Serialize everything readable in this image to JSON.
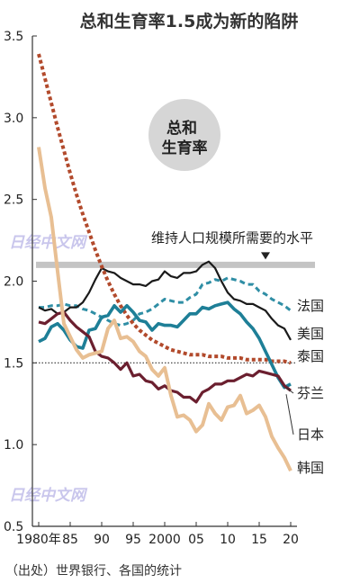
{
  "chart_data": {
    "type": "line",
    "title": "总和生育率1.5成为新的陷阱",
    "badge": "总和\n生育率",
    "x": [
      1980,
      1981,
      1982,
      1983,
      1984,
      1985,
      1986,
      1987,
      1988,
      1989,
      1990,
      1991,
      1992,
      1993,
      1994,
      1995,
      1996,
      1997,
      1998,
      1999,
      2000,
      2001,
      2002,
      2003,
      2004,
      2005,
      2006,
      2007,
      2008,
      2009,
      2010,
      2011,
      2012,
      2013,
      2014,
      2015,
      2016,
      2017,
      2018,
      2019,
      2020
    ],
    "x_tick_values": [
      1980,
      1985,
      1990,
      1995,
      2000,
      2005,
      2010,
      2015,
      2020
    ],
    "x_tick_labels": [
      "1980年",
      "85",
      "90",
      "95",
      "2000",
      "05",
      "10",
      "15",
      "20"
    ],
    "ylim": [
      0.5,
      3.5
    ],
    "y_ticks": [
      0.5,
      1.0,
      1.5,
      2.0,
      2.5,
      3.0,
      3.5
    ],
    "y_tick_labels": [
      "0.5",
      "1.0",
      "1.5",
      "2.0",
      "2.5",
      "3.0",
      "3.5"
    ],
    "series": [
      {
        "name": "法国",
        "color": "#2f8ea5",
        "dash": "dash",
        "values": [
          1.84,
          1.84,
          1.85,
          1.85,
          1.86,
          1.85,
          1.85,
          1.83,
          1.82,
          1.8,
          1.78,
          1.76,
          1.74,
          1.73,
          1.74,
          1.76,
          1.8,
          1.81,
          1.83,
          1.86,
          1.89,
          1.88,
          1.87,
          1.87,
          1.9,
          1.92,
          1.98,
          1.99,
          2.01,
          2.0,
          2.02,
          2.01,
          2.0,
          1.98,
          1.98,
          1.94,
          1.92,
          1.89,
          1.87,
          1.85,
          1.82
        ]
      },
      {
        "name": "美国",
        "color": "#1a1a1a",
        "dash": "solid",
        "values": [
          1.84,
          1.82,
          1.83,
          1.8,
          1.81,
          1.84,
          1.84,
          1.87,
          1.93,
          2.01,
          2.08,
          2.06,
          2.05,
          2.02,
          2.0,
          1.98,
          1.98,
          1.97,
          2.0,
          2.01,
          2.06,
          2.03,
          2.02,
          2.05,
          2.05,
          2.06,
          2.1,
          2.12,
          2.08,
          2.0,
          1.93,
          1.89,
          1.88,
          1.86,
          1.86,
          1.84,
          1.82,
          1.77,
          1.73,
          1.71,
          1.64
        ]
      },
      {
        "name": "泰国",
        "color": "#b24a2c",
        "dash": "dot",
        "values": [
          3.39,
          3.24,
          3.09,
          2.94,
          2.8,
          2.66,
          2.53,
          2.41,
          2.3,
          2.19,
          2.09,
          2.0,
          1.92,
          1.85,
          1.79,
          1.74,
          1.7,
          1.67,
          1.64,
          1.62,
          1.6,
          1.58,
          1.57,
          1.56,
          1.55,
          1.55,
          1.55,
          1.54,
          1.54,
          1.54,
          1.53,
          1.53,
          1.53,
          1.52,
          1.52,
          1.52,
          1.52,
          1.51,
          1.51,
          1.51,
          1.5
        ]
      },
      {
        "name": "芬兰",
        "color": "#1e7f97",
        "dash": "solid",
        "values": [
          1.63,
          1.65,
          1.72,
          1.74,
          1.7,
          1.64,
          1.6,
          1.59,
          1.7,
          1.71,
          1.78,
          1.79,
          1.85,
          1.81,
          1.85,
          1.81,
          1.76,
          1.75,
          1.7,
          1.74,
          1.73,
          1.73,
          1.72,
          1.76,
          1.8,
          1.8,
          1.84,
          1.83,
          1.85,
          1.86,
          1.87,
          1.83,
          1.8,
          1.75,
          1.71,
          1.65,
          1.57,
          1.49,
          1.41,
          1.35,
          1.37
        ]
      },
      {
        "name": "日本",
        "color": "#6b1f2f",
        "dash": "solid",
        "values": [
          1.75,
          1.74,
          1.77,
          1.8,
          1.81,
          1.76,
          1.72,
          1.69,
          1.66,
          1.57,
          1.54,
          1.53,
          1.5,
          1.46,
          1.5,
          1.42,
          1.43,
          1.39,
          1.38,
          1.34,
          1.36,
          1.33,
          1.32,
          1.29,
          1.29,
          1.26,
          1.32,
          1.34,
          1.37,
          1.37,
          1.39,
          1.39,
          1.41,
          1.43,
          1.42,
          1.45,
          1.44,
          1.43,
          1.42,
          1.36,
          1.33
        ]
      },
      {
        "name": "韩国",
        "color": "#e8bf93",
        "dash": "solid",
        "values": [
          2.82,
          2.57,
          2.39,
          2.06,
          1.74,
          1.66,
          1.58,
          1.53,
          1.55,
          1.56,
          1.57,
          1.71,
          1.76,
          1.65,
          1.66,
          1.63,
          1.57,
          1.54,
          1.46,
          1.42,
          1.47,
          1.3,
          1.17,
          1.18,
          1.15,
          1.08,
          1.12,
          1.25,
          1.19,
          1.15,
          1.23,
          1.24,
          1.3,
          1.19,
          1.21,
          1.24,
          1.17,
          1.05,
          0.98,
          0.92,
          0.84
        ]
      }
    ],
    "reference_lines": [
      {
        "label": "维持人口规模所需要的水平",
        "value": 2.1,
        "color": "#c4c4c4",
        "style": "band"
      },
      {
        "label": "",
        "value": 1.5,
        "color": "#333333",
        "style": "dotted"
      }
    ],
    "watermark": "日经中文网",
    "source": "（出处）世界银行、各国的统计",
    "grid": false
  }
}
